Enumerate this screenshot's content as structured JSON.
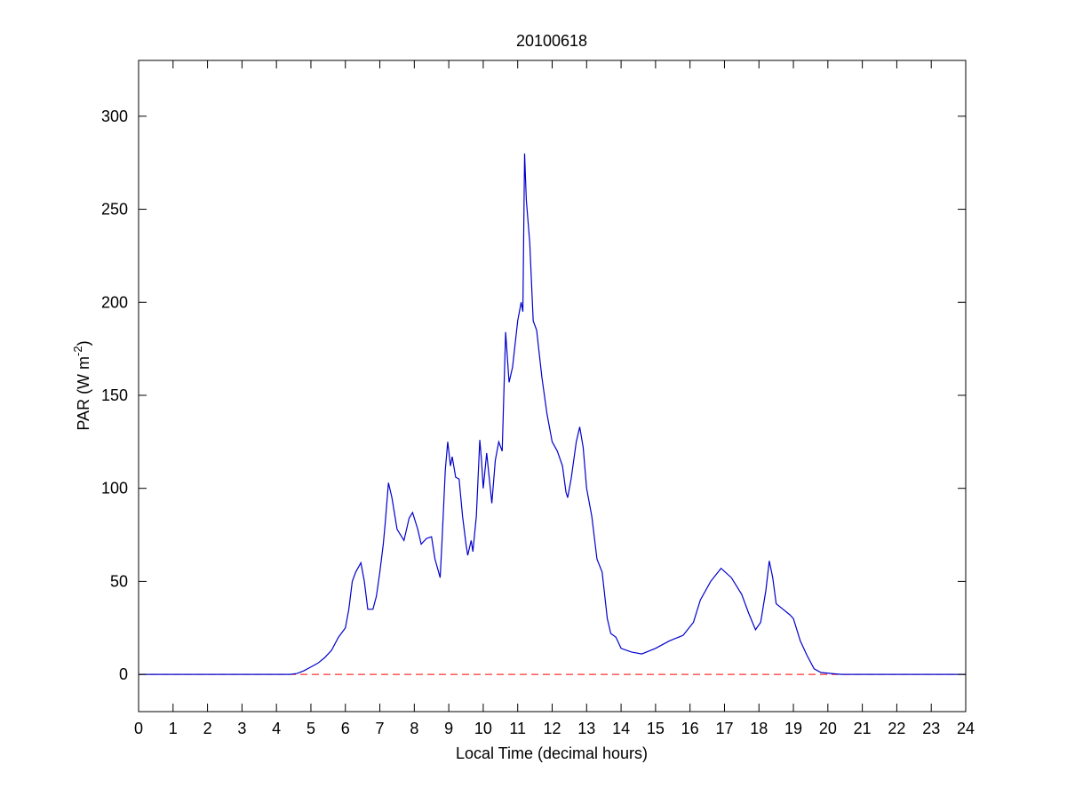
{
  "chart_data": {
    "type": "line",
    "title": "20100618",
    "x_label": "Local Time (decimal hours)",
    "y_label": {
      "text": "PAR (W m",
      "superscript": "-2",
      "suffix": ")"
    },
    "xlim": [
      0,
      24
    ],
    "ylim": [
      -20,
      330
    ],
    "xticks": [
      0,
      1,
      2,
      3,
      4,
      5,
      6,
      7,
      8,
      9,
      10,
      11,
      12,
      13,
      14,
      15,
      16,
      17,
      18,
      19,
      20,
      21,
      22,
      23,
      24
    ],
    "yticks": [
      0,
      50,
      100,
      150,
      200,
      250,
      300
    ],
    "color": "#0000cc",
    "reference_line": {
      "y": 0,
      "color": "#ff0000",
      "dashed": true
    },
    "x": [
      0,
      4.4,
      4.6,
      4.8,
      5,
      5.2,
      5.4,
      5.6,
      5.8,
      6,
      6.1,
      6.2,
      6.3,
      6.45,
      6.55,
      6.65,
      6.8,
      6.9,
      7,
      7.1,
      7.15,
      7.25,
      7.35,
      7.5,
      7.7,
      7.85,
      7.95,
      8.1,
      8.2,
      8.35,
      8.5,
      8.6,
      8.75,
      8.8,
      8.9,
      8.97,
      9.05,
      9.1,
      9.2,
      9.3,
      9.4,
      9.5,
      9.55,
      9.65,
      9.7,
      9.8,
      9.9,
      9.95,
      10,
      10.1,
      10.25,
      10.35,
      10.45,
      10.55,
      10.65,
      10.75,
      10.85,
      11,
      11.1,
      11.15,
      11.2,
      11.25,
      11.35,
      11.45,
      11.55,
      11.7,
      11.85,
      12,
      12.15,
      12.3,
      12.4,
      12.45,
      12.55,
      12.7,
      12.8,
      12.9,
      13,
      13.15,
      13.3,
      13.45,
      13.6,
      13.7,
      13.85,
      14,
      14.3,
      14.6,
      15,
      15.4,
      15.8,
      16.1,
      16.3,
      16.6,
      16.9,
      17.2,
      17.5,
      17.7,
      17.9,
      18.05,
      18.2,
      18.3,
      18.4,
      18.5,
      18.7,
      18.9,
      19,
      19.2,
      19.4,
      19.6,
      19.8,
      20.2,
      20.4,
      24
    ],
    "values": [
      0,
      0,
      0.5,
      2,
      4,
      6,
      9,
      13,
      20,
      25,
      35,
      50,
      55,
      60,
      50,
      35,
      35,
      42,
      55,
      70,
      80,
      103,
      95,
      78,
      72,
      84,
      87,
      78,
      70,
      73,
      74,
      62,
      52,
      70,
      110,
      125,
      112,
      117,
      106,
      105,
      85,
      70,
      64,
      72,
      66,
      85,
      126,
      115,
      100,
      119,
      92,
      115,
      125,
      120,
      184,
      157,
      165,
      190,
      200,
      195,
      280,
      255,
      232,
      190,
      185,
      160,
      140,
      125,
      120,
      112,
      98,
      95,
      105,
      125,
      133,
      122,
      100,
      85,
      62,
      55,
      30,
      22,
      20,
      14,
      12,
      11,
      14,
      18,
      21,
      28,
      40,
      50,
      57,
      52,
      43,
      33,
      24,
      28,
      45,
      61,
      52,
      38,
      35,
      32,
      30,
      18,
      10,
      3,
      1,
      0.3,
      0,
      0
    ]
  }
}
